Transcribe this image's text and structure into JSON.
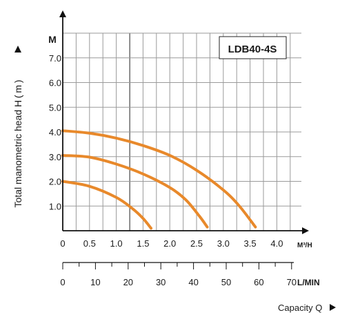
{
  "chart_data": {
    "type": "line",
    "model_label": "LDB40-4S",
    "y_unit": "M",
    "y_axis_title": "Total manometric head H ( m )",
    "x_unit_primary": "M³/H",
    "x_unit_secondary": "L/MIN",
    "x_axis_title": "Capacity Q",
    "ylim": [
      0,
      8
    ],
    "xlim": [
      0,
      4.5
    ],
    "grid": true,
    "y_ticks": [
      {
        "v": 1,
        "label": "1.0"
      },
      {
        "v": 2,
        "label": "2.0"
      },
      {
        "v": 3,
        "label": "3.0"
      },
      {
        "v": 4,
        "label": "4.0"
      },
      {
        "v": 5,
        "label": "5.0"
      },
      {
        "v": 6,
        "label": "6.0"
      },
      {
        "v": 7,
        "label": "7.0"
      }
    ],
    "x_ticks": [
      {
        "v": 0,
        "label": "0"
      },
      {
        "v": 0.5,
        "label": "0.5"
      },
      {
        "v": 1,
        "label": "1.0"
      },
      {
        "v": 1.5,
        "label": "1.5"
      },
      {
        "v": 2,
        "label": "2.0"
      },
      {
        "v": 2.5,
        "label": "2.5"
      },
      {
        "v": 3,
        "label": "3.0"
      },
      {
        "v": 3.5,
        "label": "3.5"
      },
      {
        "v": 4,
        "label": "4.0"
      }
    ],
    "x2_ticks": [
      {
        "v": 0,
        "label": "0"
      },
      {
        "v": 10,
        "label": "10"
      },
      {
        "v": 20,
        "label": "20"
      },
      {
        "v": 30,
        "label": "30"
      },
      {
        "v": 40,
        "label": "40"
      },
      {
        "v": 50,
        "label": "50"
      },
      {
        "v": 60,
        "label": "60"
      },
      {
        "v": 70,
        "label": "70"
      }
    ],
    "series": [
      {
        "color": "#e8892b",
        "points": [
          [
            0,
            4.05
          ],
          [
            0.5,
            3.95
          ],
          [
            1.0,
            3.75
          ],
          [
            1.5,
            3.45
          ],
          [
            2.0,
            3.05
          ],
          [
            2.5,
            2.45
          ],
          [
            3.0,
            1.65
          ],
          [
            3.3,
            1.0
          ],
          [
            3.6,
            0.15
          ]
        ]
      },
      {
        "color": "#e8892b",
        "points": [
          [
            0,
            3.05
          ],
          [
            0.5,
            2.98
          ],
          [
            1.0,
            2.7
          ],
          [
            1.5,
            2.3
          ],
          [
            2.0,
            1.75
          ],
          [
            2.3,
            1.25
          ],
          [
            2.55,
            0.6
          ],
          [
            2.7,
            0.15
          ]
        ]
      },
      {
        "color": "#e8892b",
        "points": [
          [
            0,
            2.0
          ],
          [
            0.5,
            1.8
          ],
          [
            1.0,
            1.35
          ],
          [
            1.3,
            0.9
          ],
          [
            1.5,
            0.5
          ],
          [
            1.65,
            0.1
          ]
        ]
      }
    ]
  }
}
